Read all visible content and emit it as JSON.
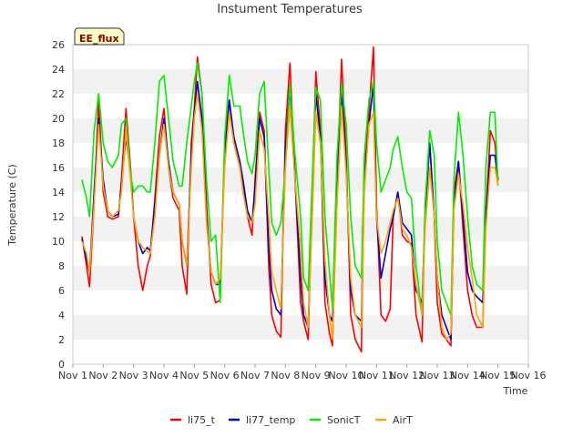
{
  "chart_data": {
    "type": "line",
    "title": "Instument Temperatures",
    "xlabel": "Time",
    "ylabel": "Temperature (C)",
    "badge": "EE_flux",
    "xlim": [
      1,
      16
    ],
    "ylim": [
      0,
      26
    ],
    "x_ticks": [
      1,
      2,
      3,
      4,
      5,
      6,
      7,
      8,
      9,
      10,
      11,
      12,
      13,
      14,
      15,
      16
    ],
    "x_tick_labels": [
      "Nov 1",
      "Nov 2",
      "Nov 3",
      "Nov 4",
      "Nov 5",
      "Nov 6",
      "Nov 7",
      "Nov 8",
      "Nov 9",
      "Nov 10",
      "Nov 11",
      "Nov 12",
      "Nov 13",
      "Nov 14",
      "Nov 15",
      "Nov 16"
    ],
    "y_ticks": [
      0,
      2,
      4,
      6,
      8,
      10,
      12,
      14,
      16,
      18,
      20,
      22,
      24,
      26
    ],
    "grid": "horizontal bands",
    "legend_position": "bottom",
    "series": [
      {
        "name": "li75_t",
        "color": "#ff0000",
        "x": [
          1.3,
          1.45,
          1.55,
          1.7,
          1.85,
          2.0,
          2.15,
          2.3,
          2.5,
          2.6,
          2.75,
          2.9,
          3.0,
          3.15,
          3.3,
          3.45,
          3.55,
          3.7,
          3.85,
          4.0,
          4.15,
          4.3,
          4.5,
          4.6,
          4.75,
          4.9,
          5.0,
          5.1,
          5.25,
          5.4,
          5.55,
          5.7,
          5.85,
          6.0,
          6.15,
          6.3,
          6.5,
          6.6,
          6.75,
          6.9,
          7.0,
          7.15,
          7.3,
          7.45,
          7.55,
          7.7,
          7.85,
          8.0,
          8.15,
          8.3,
          8.5,
          8.6,
          8.75,
          8.9,
          9.0,
          9.15,
          9.3,
          9.45,
          9.55,
          9.7,
          9.85,
          10.0,
          10.15,
          10.3,
          10.5,
          10.6,
          10.75,
          10.9,
          11.0,
          11.15,
          11.3,
          11.45,
          11.55,
          11.7,
          11.85,
          12.0,
          12.15,
          12.3,
          12.5,
          12.6,
          12.75,
          12.9,
          13.0,
          13.15,
          13.3,
          13.45,
          13.55,
          13.7,
          13.85,
          14.0,
          14.15,
          14.3,
          14.5,
          14.6,
          14.75,
          14.9,
          15.0
        ],
        "y": [
          10.4,
          8.0,
          6.3,
          13.0,
          21.5,
          14.0,
          12.0,
          11.8,
          12.0,
          15.0,
          20.8,
          16.0,
          12.0,
          8.0,
          6.0,
          8.0,
          8.8,
          13.5,
          18.5,
          20.8,
          16.0,
          13.5,
          12.5,
          8.0,
          5.7,
          18.0,
          20.8,
          25.0,
          22.0,
          13.0,
          6.5,
          5.0,
          5.2,
          18.0,
          21.5,
          18.0,
          16.0,
          15.0,
          12.0,
          10.5,
          15.0,
          20.5,
          19.0,
          8.0,
          4.0,
          2.7,
          2.2,
          19.0,
          24.5,
          16.0,
          5.0,
          3.5,
          2.0,
          15.0,
          23.8,
          19.0,
          5.0,
          2.5,
          1.5,
          15.0,
          24.8,
          17.0,
          4.0,
          2.0,
          1.0,
          16.0,
          20.5,
          25.8,
          13.0,
          4.0,
          3.5,
          4.5,
          12.0,
          14.0,
          10.5,
          10.0,
          9.8,
          4.0,
          1.8,
          13.0,
          18.0,
          12.0,
          5.0,
          2.5,
          2.0,
          1.5,
          14.0,
          16.5,
          11.0,
          6.0,
          4.0,
          3.0,
          3.0,
          12.0,
          19.0,
          18.0,
          15.0
        ]
      },
      {
        "name": "li77_temp",
        "color": "#0000cc",
        "x": [
          1.3,
          1.45,
          1.55,
          1.7,
          1.85,
          2.0,
          2.15,
          2.3,
          2.5,
          2.6,
          2.75,
          2.9,
          3.0,
          3.15,
          3.3,
          3.45,
          3.55,
          3.7,
          3.85,
          4.0,
          4.15,
          4.3,
          4.5,
          4.6,
          4.75,
          4.9,
          5.0,
          5.1,
          5.25,
          5.4,
          5.55,
          5.7,
          5.85,
          6.0,
          6.15,
          6.3,
          6.5,
          6.6,
          6.75,
          6.9,
          7.0,
          7.15,
          7.3,
          7.45,
          7.55,
          7.7,
          7.85,
          8.0,
          8.15,
          8.3,
          8.5,
          8.6,
          8.75,
          8.9,
          9.0,
          9.15,
          9.3,
          9.45,
          9.55,
          9.7,
          9.85,
          10.0,
          10.15,
          10.3,
          10.5,
          10.6,
          10.75,
          10.9,
          11.0,
          11.15,
          11.3,
          11.45,
          11.55,
          11.7,
          11.85,
          12.0,
          12.15,
          12.3,
          12.5,
          12.6,
          12.75,
          12.9,
          13.0,
          13.15,
          13.3,
          13.45,
          13.55,
          13.7,
          13.85,
          14.0,
          14.15,
          14.3,
          14.5,
          14.6,
          14.75,
          14.9,
          15.0
        ],
        "y": [
          10.2,
          8.5,
          7.5,
          14.0,
          20.0,
          15.0,
          12.5,
          12.0,
          12.2,
          14.5,
          18.5,
          15.5,
          12.0,
          10.0,
          9.0,
          9.5,
          9.2,
          13.0,
          17.0,
          20.0,
          16.5,
          14.0,
          13.0,
          10.0,
          8.0,
          17.0,
          20.5,
          23.0,
          20.0,
          12.0,
          7.5,
          6.5,
          6.5,
          17.0,
          21.5,
          18.5,
          16.5,
          15.0,
          12.5,
          11.5,
          14.5,
          20.0,
          18.5,
          9.5,
          6.0,
          4.5,
          4.0,
          17.5,
          22.5,
          16.0,
          7.0,
          4.0,
          3.0,
          14.0,
          22.0,
          18.5,
          7.0,
          4.0,
          3.5,
          14.0,
          22.5,
          16.0,
          6.0,
          4.0,
          3.5,
          15.0,
          19.5,
          22.8,
          12.0,
          7.0,
          9.0,
          11.0,
          12.0,
          14.0,
          11.5,
          11.0,
          10.5,
          6.0,
          5.0,
          12.0,
          18.0,
          12.0,
          7.0,
          4.0,
          3.0,
          2.0,
          13.0,
          16.5,
          12.0,
          7.5,
          6.0,
          5.5,
          5.0,
          12.0,
          17.0,
          17.0,
          15.0
        ]
      },
      {
        "name": "SonicT",
        "color": "#00ee00",
        "x": [
          1.3,
          1.45,
          1.55,
          1.7,
          1.85,
          2.0,
          2.15,
          2.3,
          2.5,
          2.6,
          2.75,
          2.9,
          3.0,
          3.15,
          3.3,
          3.45,
          3.55,
          3.7,
          3.85,
          4.0,
          4.15,
          4.3,
          4.5,
          4.6,
          4.75,
          4.9,
          5.0,
          5.1,
          5.25,
          5.4,
          5.55,
          5.7,
          5.85,
          6.0,
          6.15,
          6.3,
          6.5,
          6.6,
          6.75,
          6.9,
          7.0,
          7.15,
          7.3,
          7.45,
          7.55,
          7.7,
          7.85,
          8.0,
          8.15,
          8.3,
          8.5,
          8.6,
          8.75,
          8.9,
          9.0,
          9.15,
          9.3,
          9.45,
          9.55,
          9.7,
          9.85,
          10.0,
          10.15,
          10.3,
          10.5,
          10.6,
          10.75,
          10.9,
          11.0,
          11.15,
          11.3,
          11.45,
          11.55,
          11.7,
          11.85,
          12.0,
          12.15,
          12.3,
          12.5,
          12.6,
          12.75,
          12.9,
          13.0,
          13.15,
          13.3,
          13.45,
          13.55,
          13.7,
          13.85,
          14.0,
          14.15,
          14.3,
          14.5,
          14.6,
          14.75,
          14.9,
          15.0
        ],
        "y": [
          15.0,
          13.5,
          12.0,
          19.0,
          22.0,
          18.0,
          16.5,
          16.0,
          17.0,
          19.5,
          20.0,
          15.5,
          14.0,
          14.5,
          14.5,
          14.0,
          14.0,
          18.0,
          23.0,
          23.5,
          20.0,
          16.5,
          14.5,
          14.5,
          18.0,
          21.0,
          23.0,
          24.5,
          22.0,
          15.0,
          10.0,
          10.5,
          5.0,
          18.5,
          23.5,
          21.0,
          21.0,
          19.0,
          16.5,
          15.5,
          17.0,
          22.0,
          23.0,
          16.0,
          11.5,
          10.5,
          11.5,
          16.0,
          22.8,
          17.5,
          12.0,
          7.0,
          6.0,
          16.0,
          22.5,
          21.5,
          12.0,
          7.5,
          4.5,
          17.0,
          22.8,
          19.5,
          12.0,
          8.0,
          7.0,
          17.0,
          21.5,
          23.0,
          18.0,
          14.0,
          15.0,
          16.0,
          17.5,
          18.5,
          16.0,
          14.0,
          13.5,
          8.0,
          4.0,
          13.0,
          19.0,
          17.0,
          10.0,
          6.0,
          5.0,
          4.0,
          15.0,
          20.5,
          17.0,
          12.0,
          8.0,
          6.5,
          6.0,
          16.0,
          20.5,
          20.5,
          14.5
        ]
      },
      {
        "name": "AirT",
        "color": "#ffa500",
        "x": [
          1.3,
          1.45,
          1.55,
          1.7,
          1.85,
          2.0,
          2.15,
          2.3,
          2.5,
          2.6,
          2.75,
          2.9,
          3.0,
          3.15,
          3.3,
          3.45,
          3.55,
          3.7,
          3.85,
          4.0,
          4.15,
          4.3,
          4.5,
          4.6,
          4.75,
          4.9,
          5.0,
          5.1,
          5.25,
          5.4,
          5.55,
          5.7,
          5.85,
          6.0,
          6.15,
          6.3,
          6.5,
          6.6,
          6.75,
          6.9,
          7.0,
          7.15,
          7.3,
          7.45,
          7.55,
          7.7,
          7.85,
          8.0,
          8.15,
          8.3,
          8.5,
          8.6,
          8.75,
          8.9,
          9.0,
          9.15,
          9.3,
          9.45,
          9.55,
          9.7,
          9.85,
          10.0,
          10.15,
          10.3,
          10.5,
          10.6,
          10.75,
          10.9,
          11.0,
          11.15,
          11.3,
          11.45,
          11.55,
          11.7,
          11.85,
          12.0,
          12.15,
          12.3,
          12.5,
          12.6,
          12.75,
          12.9,
          13.0,
          13.15,
          13.3,
          13.45,
          13.55,
          13.7,
          13.85,
          14.0,
          14.15,
          14.3,
          14.5,
          14.6,
          14.75,
          14.9,
          15.0
        ],
        "y": [
          10.0,
          9.0,
          7.5,
          13.0,
          19.5,
          14.5,
          12.5,
          12.0,
          12.5,
          14.0,
          19.0,
          15.0,
          12.0,
          10.0,
          9.5,
          9.2,
          9.0,
          12.0,
          17.0,
          19.5,
          16.0,
          14.0,
          13.0,
          10.0,
          8.0,
          16.0,
          20.0,
          22.0,
          19.0,
          11.5,
          7.5,
          6.5,
          7.0,
          16.0,
          20.5,
          18.0,
          16.0,
          14.0,
          12.0,
          11.5,
          13.0,
          19.0,
          17.5,
          12.0,
          7.5,
          6.0,
          4.5,
          16.0,
          21.0,
          15.5,
          9.5,
          5.0,
          3.0,
          13.0,
          20.5,
          18.0,
          8.5,
          4.0,
          2.0,
          13.0,
          21.0,
          15.5,
          7.0,
          4.0,
          3.0,
          14.0,
          19.5,
          20.5,
          12.0,
          9.0,
          10.0,
          11.5,
          12.5,
          13.5,
          11.0,
          10.5,
          9.5,
          6.5,
          4.0,
          11.0,
          16.0,
          12.0,
          7.0,
          3.0,
          2.0,
          2.5,
          12.5,
          15.5,
          13.0,
          9.5,
          7.0,
          4.0,
          3.0,
          11.0,
          16.0,
          16.0,
          14.5
        ]
      }
    ]
  }
}
